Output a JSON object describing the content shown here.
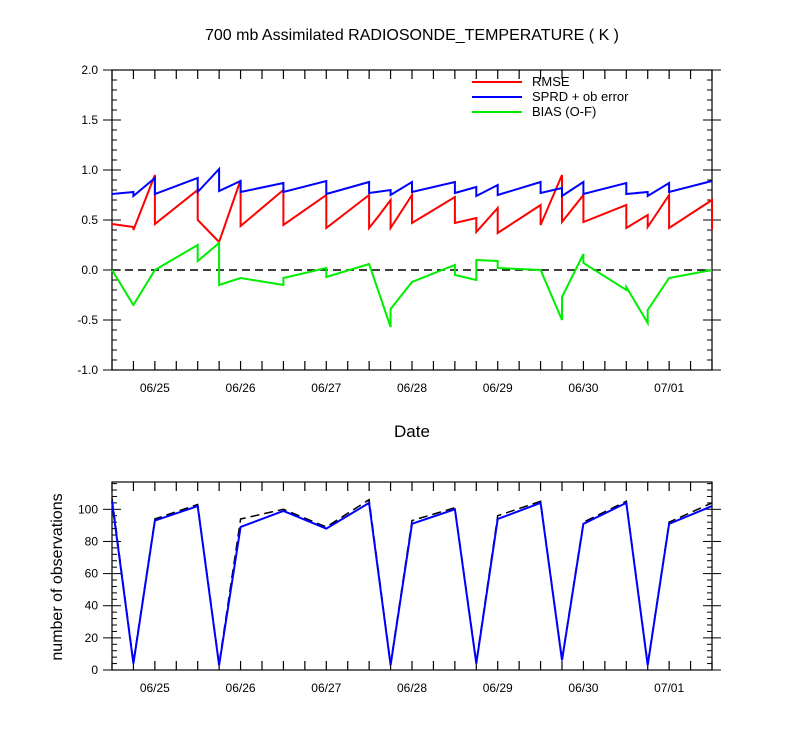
{
  "chart_data": [
    {
      "type": "line",
      "title": "700 mb Assimilated RADIOSONDE_TEMPERATURE ( K )",
      "xlabel": "Date",
      "ylabel": "",
      "ylim": [
        -1.0,
        2.0
      ],
      "y_ticks": [
        "-1.0",
        "-0.5",
        "0.0",
        "0.5",
        "1.0",
        "1.5",
        "2.0"
      ],
      "y_tick_values": [
        -1.0,
        -0.5,
        0.0,
        0.5,
        1.0,
        1.5,
        2.0
      ],
      "xlim": [
        -0.5,
        6.5
      ],
      "x_ticks": [
        "06/25",
        "06/26",
        "06/27",
        "06/28",
        "06/29",
        "06/30",
        "07/01"
      ],
      "x_tick_values": [
        0,
        1,
        2,
        3,
        4,
        5,
        6
      ],
      "zero_line": true,
      "legend_position": "top-right",
      "series": [
        {
          "name": "RMSE",
          "color": "#ff0000",
          "points": [
            [
              -0.5,
              0.46
            ],
            [
              -0.25,
              0.43
            ],
            [
              -0.25,
              0.4
            ],
            [
              0,
              0.95
            ],
            [
              0,
              0.46
            ],
            [
              0.5,
              0.8
            ],
            [
              0.5,
              0.5
            ],
            [
              0.75,
              0.28
            ],
            [
              1,
              0.9
            ],
            [
              1,
              0.44
            ],
            [
              1.5,
              0.8
            ],
            [
              1.5,
              0.45
            ],
            [
              2,
              0.75
            ],
            [
              2,
              0.42
            ],
            [
              2.5,
              0.75
            ],
            [
              2.5,
              0.42
            ],
            [
              2.62,
              0.55
            ],
            [
              2.75,
              0.7
            ],
            [
              2.75,
              0.42
            ],
            [
              3,
              0.75
            ],
            [
              3,
              0.47
            ],
            [
              3.5,
              0.73
            ],
            [
              3.5,
              0.47
            ],
            [
              3.75,
              0.52
            ],
            [
              3.75,
              0.38
            ],
            [
              4,
              0.62
            ],
            [
              4,
              0.37
            ],
            [
              4.5,
              0.65
            ],
            [
              4.5,
              0.45
            ],
            [
              4.75,
              0.95
            ],
            [
              4.75,
              0.48
            ],
            [
              5,
              0.75
            ],
            [
              5,
              0.48
            ],
            [
              5.5,
              0.65
            ],
            [
              5.5,
              0.42
            ],
            [
              5.75,
              0.55
            ],
            [
              5.75,
              0.43
            ],
            [
              6,
              0.75
            ],
            [
              6,
              0.42
            ],
            [
              6.5,
              0.7
            ],
            [
              6.5,
              0.4
            ]
          ]
        },
        {
          "name": "SPRD + ob error",
          "color": "#0000ff",
          "points": [
            [
              -0.5,
              0.76
            ],
            [
              -0.25,
              0.78
            ],
            [
              -0.25,
              0.74
            ],
            [
              0,
              0.92
            ],
            [
              0,
              0.76
            ],
            [
              0.5,
              0.92
            ],
            [
              0.5,
              0.78
            ],
            [
              0.75,
              1.01
            ],
            [
              0.75,
              0.79
            ],
            [
              1,
              0.89
            ],
            [
              1,
              0.78
            ],
            [
              1.5,
              0.87
            ],
            [
              1.5,
              0.78
            ],
            [
              2,
              0.89
            ],
            [
              2,
              0.76
            ],
            [
              2.5,
              0.88
            ],
            [
              2.5,
              0.77
            ],
            [
              2.75,
              0.8
            ],
            [
              2.75,
              0.75
            ],
            [
              3,
              0.88
            ],
            [
              3,
              0.78
            ],
            [
              3.5,
              0.88
            ],
            [
              3.5,
              0.77
            ],
            [
              3.75,
              0.83
            ],
            [
              3.75,
              0.74
            ],
            [
              4,
              0.85
            ],
            [
              4,
              0.75
            ],
            [
              4.5,
              0.88
            ],
            [
              4.5,
              0.77
            ],
            [
              4.75,
              0.82
            ],
            [
              4.75,
              0.74
            ],
            [
              5,
              0.88
            ],
            [
              5,
              0.76
            ],
            [
              5.5,
              0.87
            ],
            [
              5.5,
              0.76
            ],
            [
              5.75,
              0.78
            ],
            [
              5.75,
              0.74
            ],
            [
              6,
              0.87
            ],
            [
              6,
              0.78
            ],
            [
              6.5,
              0.89
            ]
          ]
        },
        {
          "name": "BIAS (O-F)",
          "color": "#00ee00",
          "points": [
            [
              -0.5,
              0.0
            ],
            [
              -0.25,
              -0.35
            ],
            [
              0,
              0.0
            ],
            [
              0.5,
              0.25
            ],
            [
              0.5,
              0.09
            ],
            [
              0.75,
              0.27
            ],
            [
              0.75,
              -0.15
            ],
            [
              1,
              -0.08
            ],
            [
              1.5,
              -0.15
            ],
            [
              1.5,
              -0.08
            ],
            [
              2,
              0.02
            ],
            [
              2,
              -0.07
            ],
            [
              2.5,
              0.06
            ],
            [
              2.75,
              -0.57
            ],
            [
              2.75,
              -0.39
            ],
            [
              3,
              -0.12
            ],
            [
              3.5,
              0.05
            ],
            [
              3.5,
              -0.05
            ],
            [
              3.75,
              -0.1
            ],
            [
              3.75,
              0.1
            ],
            [
              4,
              0.09
            ],
            [
              4,
              0.02
            ],
            [
              4.5,
              0.0
            ],
            [
              4.75,
              -0.5
            ],
            [
              4.75,
              -0.27
            ],
            [
              5,
              0.16
            ],
            [
              5,
              0.07
            ],
            [
              5.5,
              -0.2
            ],
            [
              5.5,
              -0.17
            ],
            [
              5.75,
              -0.53
            ],
            [
              5.75,
              -0.4
            ],
            [
              6,
              -0.08
            ],
            [
              6.5,
              0.0
            ]
          ]
        }
      ]
    },
    {
      "type": "line",
      "title": "",
      "xlabel": "",
      "ylabel": "number of observations",
      "ylim": [
        0,
        117
      ],
      "y_ticks": [
        "0",
        "20",
        "40",
        "60",
        "80",
        "100"
      ],
      "y_tick_values": [
        0,
        20,
        40,
        60,
        80,
        100
      ],
      "xlim": [
        -0.5,
        6.5
      ],
      "x_ticks": [
        "06/25",
        "06/26",
        "06/27",
        "06/28",
        "06/29",
        "06/30",
        "07/01"
      ],
      "x_tick_values": [
        0,
        1,
        2,
        3,
        4,
        5,
        6
      ],
      "series": [
        {
          "color": "#000000",
          "dashed": true,
          "points": [
            [
              -0.5,
              107
            ],
            [
              -0.25,
              5
            ],
            [
              0,
              94
            ],
            [
              0.5,
              103
            ],
            [
              0.75,
              4
            ],
            [
              1,
              94
            ],
            [
              1.5,
              100
            ],
            [
              2,
              89
            ],
            [
              2.5,
              106
            ],
            [
              2.75,
              4
            ],
            [
              3,
              93
            ],
            [
              3.5,
              101
            ],
            [
              3.75,
              5
            ],
            [
              4,
              96
            ],
            [
              4.5,
              105
            ],
            [
              4.75,
              7
            ],
            [
              5,
              92
            ],
            [
              5.5,
              105
            ],
            [
              5.75,
              4
            ],
            [
              6,
              92
            ],
            [
              6.5,
              104
            ]
          ]
        },
        {
          "color": "#0000ff",
          "dashed": false,
          "points": [
            [
              -0.5,
              105
            ],
            [
              -0.25,
              4
            ],
            [
              0,
              93
            ],
            [
              0.5,
              102
            ],
            [
              0.75,
              3
            ],
            [
              1,
              89
            ],
            [
              1.5,
              99
            ],
            [
              2,
              88
            ],
            [
              2.5,
              104
            ],
            [
              2.75,
              3
            ],
            [
              3,
              91
            ],
            [
              3.5,
              100
            ],
            [
              3.75,
              4
            ],
            [
              4,
              94
            ],
            [
              4.5,
              104
            ],
            [
              4.75,
              6
            ],
            [
              5,
              91
            ],
            [
              5.5,
              104
            ],
            [
              5.75,
              3
            ],
            [
              6,
              91
            ],
            [
              6.5,
              102
            ]
          ]
        }
      ]
    }
  ]
}
